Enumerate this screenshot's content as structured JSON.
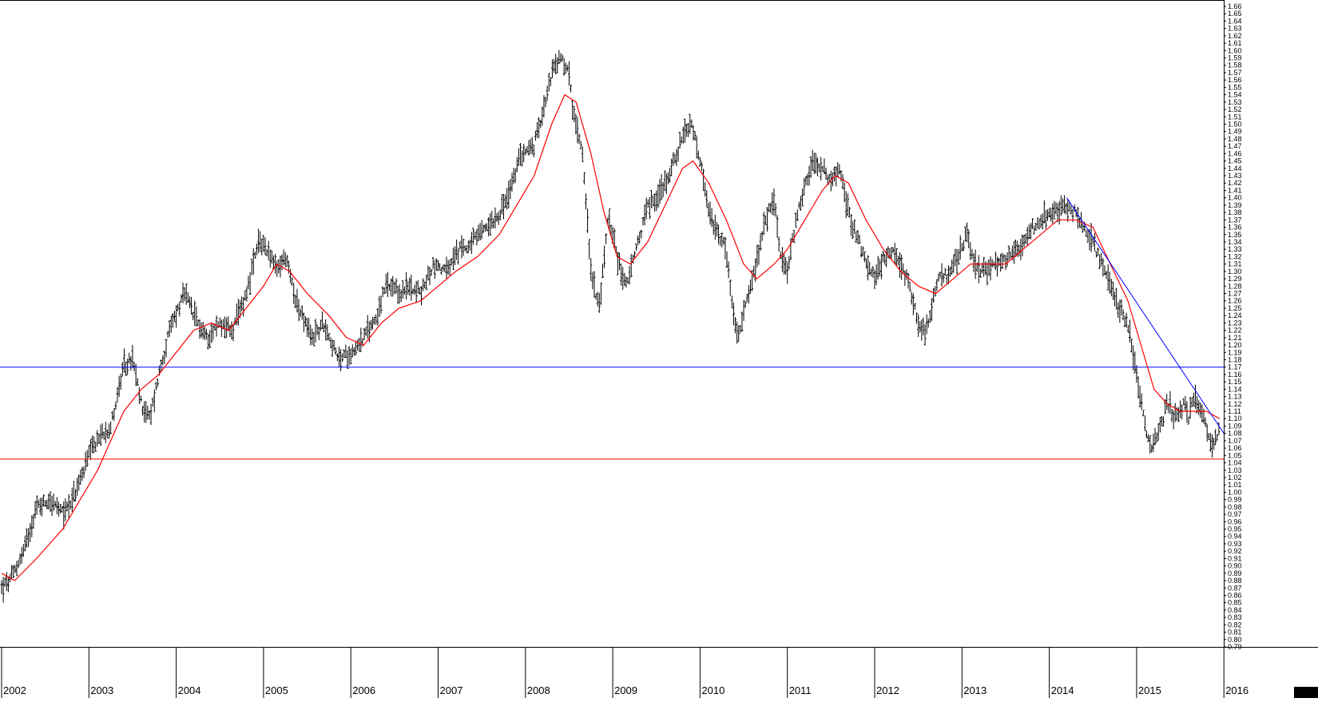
{
  "chart_data": {
    "type": "bar",
    "subtype": "ohlc-weekly",
    "title": "",
    "xlabel": "",
    "ylabel": "",
    "ylim": [
      0.79,
      1.66
    ],
    "y_ticks": [
      "1.66",
      "1.65",
      "1.64",
      "1.63",
      "1.62",
      "1.61",
      "1.60",
      "1.59",
      "1.58",
      "1.57",
      "1.56",
      "1.55",
      "1.54",
      "1.53",
      "1.52",
      "1.51",
      "1.50",
      "1.49",
      "1.48",
      "1.47",
      "1.46",
      "1.45",
      "1.44",
      "1.43",
      "1.42",
      "1.41",
      "1.40",
      "1.39",
      "1.38",
      "1.37",
      "1.36",
      "1.35",
      "1.34",
      "1.33",
      "1.32",
      "1.31",
      "1.30",
      "1.29",
      "1.28",
      "1.27",
      "1.26",
      "1.25",
      "1.24",
      "1.23",
      "1.22",
      "1.21",
      "1.20",
      "1.19",
      "1.18",
      "1.17",
      "1.16",
      "1.15",
      "1.14",
      "1.13",
      "1.12",
      "1.11",
      "1.10",
      "1.09",
      "1.08",
      "1.07",
      "1.06",
      "1.05",
      "1.04",
      "1.03",
      "1.02",
      "1.01",
      "1.00",
      "0.99",
      "0.98",
      "0.97",
      "0.96",
      "0.95",
      "0.94",
      "0.93",
      "0.92",
      "0.91",
      "0.90",
      "0.89",
      "0.88",
      "0.87",
      "0.86",
      "0.85",
      "0.84",
      "0.83",
      "0.82",
      "0.81",
      "0.80",
      "0.79"
    ],
    "x_axis": {
      "start": 2002.0,
      "end": 2016.0,
      "year_labels": [
        "2002",
        "2003",
        "2004",
        "2005",
        "2006",
        "2007",
        "2008",
        "2009",
        "2010",
        "2011",
        "2012",
        "2013",
        "2014",
        "2015",
        "2016"
      ]
    },
    "price_path": [
      [
        2002.0,
        0.87
      ],
      [
        2002.1,
        0.88
      ],
      [
        2002.25,
        0.92
      ],
      [
        2002.4,
        0.98
      ],
      [
        2002.55,
        0.99
      ],
      [
        2002.7,
        0.97
      ],
      [
        2002.85,
        1.0
      ],
      [
        2003.0,
        1.05
      ],
      [
        2003.15,
        1.08
      ],
      [
        2003.25,
        1.09
      ],
      [
        2003.4,
        1.17
      ],
      [
        2003.5,
        1.18
      ],
      [
        2003.6,
        1.12
      ],
      [
        2003.7,
        1.1
      ],
      [
        2003.8,
        1.16
      ],
      [
        2003.95,
        1.23
      ],
      [
        2004.1,
        1.27
      ],
      [
        2004.2,
        1.24
      ],
      [
        2004.35,
        1.21
      ],
      [
        2004.5,
        1.23
      ],
      [
        2004.65,
        1.22
      ],
      [
        2004.8,
        1.27
      ],
      [
        2004.95,
        1.34
      ],
      [
        2005.05,
        1.33
      ],
      [
        2005.15,
        1.3
      ],
      [
        2005.25,
        1.32
      ],
      [
        2005.4,
        1.25
      ],
      [
        2005.55,
        1.21
      ],
      [
        2005.7,
        1.23
      ],
      [
        2005.85,
        1.18
      ],
      [
        2006.0,
        1.19
      ],
      [
        2006.15,
        1.21
      ],
      [
        2006.3,
        1.24
      ],
      [
        2006.4,
        1.28
      ],
      [
        2006.55,
        1.27
      ],
      [
        2006.7,
        1.28
      ],
      [
        2006.8,
        1.27
      ],
      [
        2006.95,
        1.31
      ],
      [
        2007.1,
        1.3
      ],
      [
        2007.25,
        1.33
      ],
      [
        2007.4,
        1.34
      ],
      [
        2007.55,
        1.36
      ],
      [
        2007.7,
        1.38
      ],
      [
        2007.8,
        1.4
      ],
      [
        2007.95,
        1.46
      ],
      [
        2008.1,
        1.47
      ],
      [
        2008.2,
        1.52
      ],
      [
        2008.3,
        1.57
      ],
      [
        2008.4,
        1.59
      ],
      [
        2008.5,
        1.57
      ],
      [
        2008.55,
        1.51
      ],
      [
        2008.65,
        1.47
      ],
      [
        2008.75,
        1.3
      ],
      [
        2008.85,
        1.25
      ],
      [
        2008.95,
        1.38
      ],
      [
        2009.05,
        1.32
      ],
      [
        2009.15,
        1.28
      ],
      [
        2009.25,
        1.32
      ],
      [
        2009.4,
        1.39
      ],
      [
        2009.5,
        1.4
      ],
      [
        2009.6,
        1.42
      ],
      [
        2009.7,
        1.45
      ],
      [
        2009.8,
        1.48
      ],
      [
        2009.9,
        1.5
      ],
      [
        2010.0,
        1.45
      ],
      [
        2010.1,
        1.38
      ],
      [
        2010.2,
        1.35
      ],
      [
        2010.3,
        1.33
      ],
      [
        2010.38,
        1.24
      ],
      [
        2010.45,
        1.21
      ],
      [
        2010.55,
        1.27
      ],
      [
        2010.65,
        1.31
      ],
      [
        2010.75,
        1.37
      ],
      [
        2010.85,
        1.4
      ],
      [
        2010.92,
        1.32
      ],
      [
        2011.0,
        1.3
      ],
      [
        2011.1,
        1.37
      ],
      [
        2011.2,
        1.42
      ],
      [
        2011.3,
        1.45
      ],
      [
        2011.4,
        1.44
      ],
      [
        2011.5,
        1.42
      ],
      [
        2011.6,
        1.44
      ],
      [
        2011.7,
        1.38
      ],
      [
        2011.8,
        1.35
      ],
      [
        2011.9,
        1.31
      ],
      [
        2012.0,
        1.29
      ],
      [
        2012.1,
        1.32
      ],
      [
        2012.2,
        1.33
      ],
      [
        2012.3,
        1.31
      ],
      [
        2012.4,
        1.28
      ],
      [
        2012.5,
        1.23
      ],
      [
        2012.58,
        1.22
      ],
      [
        2012.65,
        1.25
      ],
      [
        2012.75,
        1.3
      ],
      [
        2012.85,
        1.29
      ],
      [
        2012.95,
        1.32
      ],
      [
        2013.05,
        1.35
      ],
      [
        2013.15,
        1.31
      ],
      [
        2013.25,
        1.3
      ],
      [
        2013.4,
        1.31
      ],
      [
        2013.55,
        1.32
      ],
      [
        2013.7,
        1.34
      ],
      [
        2013.8,
        1.36
      ],
      [
        2013.9,
        1.37
      ],
      [
        2014.05,
        1.38
      ],
      [
        2014.2,
        1.39
      ],
      [
        2014.3,
        1.38
      ],
      [
        2014.4,
        1.36
      ],
      [
        2014.5,
        1.34
      ],
      [
        2014.6,
        1.31
      ],
      [
        2014.7,
        1.28
      ],
      [
        2014.8,
        1.25
      ],
      [
        2014.9,
        1.23
      ],
      [
        2015.0,
        1.16
      ],
      [
        2015.05,
        1.12
      ],
      [
        2015.15,
        1.06
      ],
      [
        2015.25,
        1.08
      ],
      [
        2015.35,
        1.12
      ],
      [
        2015.45,
        1.1
      ],
      [
        2015.55,
        1.12
      ],
      [
        2015.6,
        1.1
      ],
      [
        2015.65,
        1.13
      ],
      [
        2015.75,
        1.11
      ],
      [
        2015.8,
        1.09
      ],
      [
        2015.87,
        1.06
      ],
      [
        2015.95,
        1.09
      ]
    ],
    "moving_average": [
      [
        2002.0,
        0.89
      ],
      [
        2002.15,
        0.88
      ],
      [
        2002.4,
        0.91
      ],
      [
        2002.7,
        0.95
      ],
      [
        2002.9,
        0.99
      ],
      [
        2003.1,
        1.03
      ],
      [
        2003.25,
        1.07
      ],
      [
        2003.4,
        1.11
      ],
      [
        2003.6,
        1.14
      ],
      [
        2003.8,
        1.16
      ],
      [
        2004.0,
        1.19
      ],
      [
        2004.2,
        1.22
      ],
      [
        2004.4,
        1.23
      ],
      [
        2004.6,
        1.22
      ],
      [
        2004.8,
        1.25
      ],
      [
        2005.0,
        1.28
      ],
      [
        2005.15,
        1.31
      ],
      [
        2005.3,
        1.3
      ],
      [
        2005.5,
        1.27
      ],
      [
        2005.75,
        1.24
      ],
      [
        2005.95,
        1.21
      ],
      [
        2006.15,
        1.2
      ],
      [
        2006.35,
        1.23
      ],
      [
        2006.55,
        1.25
      ],
      [
        2006.8,
        1.26
      ],
      [
        2007.0,
        1.28
      ],
      [
        2007.2,
        1.3
      ],
      [
        2007.45,
        1.32
      ],
      [
        2007.7,
        1.35
      ],
      [
        2007.9,
        1.39
      ],
      [
        2008.1,
        1.43
      ],
      [
        2008.3,
        1.5
      ],
      [
        2008.45,
        1.54
      ],
      [
        2008.58,
        1.53
      ],
      [
        2008.75,
        1.46
      ],
      [
        2008.9,
        1.38
      ],
      [
        2009.05,
        1.32
      ],
      [
        2009.2,
        1.31
      ],
      [
        2009.4,
        1.34
      ],
      [
        2009.6,
        1.39
      ],
      [
        2009.8,
        1.44
      ],
      [
        2009.92,
        1.45
      ],
      [
        2010.1,
        1.42
      ],
      [
        2010.3,
        1.37
      ],
      [
        2010.5,
        1.31
      ],
      [
        2010.65,
        1.29
      ],
      [
        2010.85,
        1.31
      ],
      [
        2011.0,
        1.33
      ],
      [
        2011.2,
        1.37
      ],
      [
        2011.4,
        1.41
      ],
      [
        2011.55,
        1.43
      ],
      [
        2011.7,
        1.42
      ],
      [
        2011.9,
        1.37
      ],
      [
        2012.1,
        1.33
      ],
      [
        2012.3,
        1.3
      ],
      [
        2012.5,
        1.28
      ],
      [
        2012.7,
        1.27
      ],
      [
        2012.9,
        1.29
      ],
      [
        2013.1,
        1.31
      ],
      [
        2013.3,
        1.31
      ],
      [
        2013.5,
        1.31
      ],
      [
        2013.7,
        1.33
      ],
      [
        2013.9,
        1.35
      ],
      [
        2014.1,
        1.37
      ],
      [
        2014.3,
        1.37
      ],
      [
        2014.5,
        1.36
      ],
      [
        2014.7,
        1.31
      ],
      [
        2014.9,
        1.26
      ],
      [
        2015.05,
        1.2
      ],
      [
        2015.2,
        1.14
      ],
      [
        2015.35,
        1.12
      ],
      [
        2015.5,
        1.11
      ],
      [
        2015.65,
        1.11
      ],
      [
        2015.8,
        1.11
      ],
      [
        2015.95,
        1.1
      ]
    ],
    "horizontal_lines": [
      {
        "value": 1.17,
        "color": "#0000ff"
      },
      {
        "value": 1.045,
        "color": "#ff0000"
      }
    ],
    "trend_line": {
      "from": [
        2014.2,
        1.4
      ],
      "to": [
        2016.0,
        1.08
      ],
      "color": "#0000ff"
    },
    "colors": {
      "bars": "#000000",
      "moving_average": "#ff0000",
      "support": "#ff0000",
      "resistance": "#0000ff",
      "trend": "#0000ff"
    },
    "grid": false,
    "legend": "none"
  }
}
